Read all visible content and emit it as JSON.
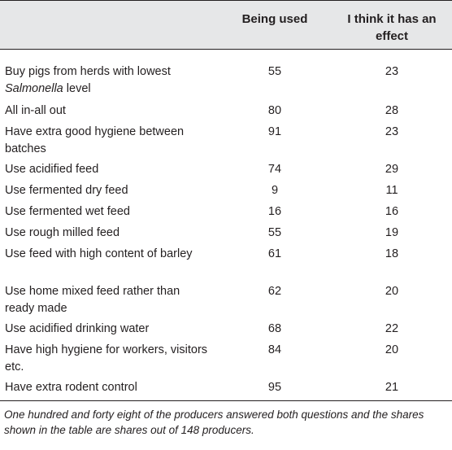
{
  "table": {
    "headers": {
      "col1": "",
      "col2": "Being used",
      "col3": "I think it has an effect"
    },
    "rows": [
      {
        "label": "Buy pigs from herds with lowest ",
        "label_italic": "Salmonella",
        "label_tail": " level",
        "used": "55",
        "effect": "23"
      },
      {
        "label": "All in-all out",
        "used": "80",
        "effect": "28"
      },
      {
        "label": "Have extra good hygiene between batches",
        "used": "91",
        "effect": "23"
      },
      {
        "label": "Use acidified feed",
        "used": "74",
        "effect": "29"
      },
      {
        "label": "Use fermented dry feed",
        "used": "9",
        "effect": "11"
      },
      {
        "label": "Use fermented wet feed",
        "used": "16",
        "effect": "16"
      },
      {
        "label": "Use rough milled feed",
        "used": "55",
        "effect": "19"
      },
      {
        "label": "Use feed with high content of barley",
        "used": "61",
        "effect": "18"
      },
      {
        "label": "Use home mixed feed rather than ready made",
        "used": "62",
        "effect": "20"
      },
      {
        "label": "Use acidified drinking water",
        "used": "68",
        "effect": "22"
      },
      {
        "label": "Have high hygiene for workers, visitors etc.",
        "used": "84",
        "effect": "20"
      },
      {
        "label": "Have extra rodent control",
        "used": "95",
        "effect": "21"
      }
    ],
    "footnote": "One hundred and forty eight of the producers answered both questions and the shares shown in the table are shares out of 148 producers."
  }
}
